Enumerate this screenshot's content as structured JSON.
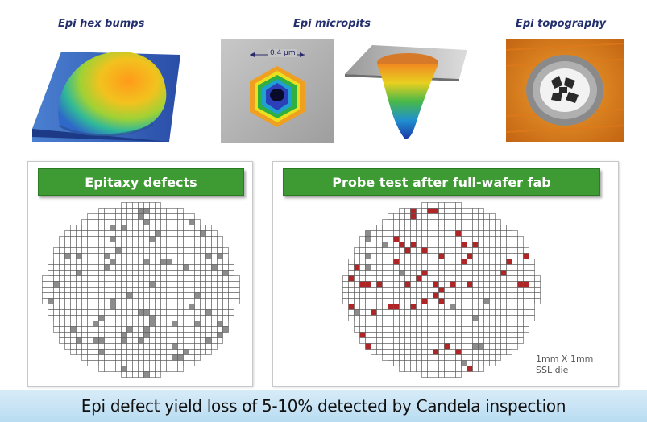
{
  "captions": {
    "hex_bumps": "Epi hex bumps",
    "micropits": "Epi micropits",
    "topography": "Epi topography"
  },
  "micropit_scale_label": "0.4 µm",
  "panels": [
    {
      "title": "Epitaxy defects",
      "defect_color": "#8c8c8c"
    },
    {
      "title": "Probe test after full-wafer fab",
      "defect_color": "#b02525"
    }
  ],
  "die_note": {
    "line1": "1mm X 1mm",
    "line2": "SSL die"
  },
  "footer": "Epi defect yield loss of 5-10% detected by Candela inspection",
  "colors": {
    "banner_green": "#3e9a32",
    "footer_blue": "#c9e4f5",
    "caption_navy": "#24306e"
  }
}
